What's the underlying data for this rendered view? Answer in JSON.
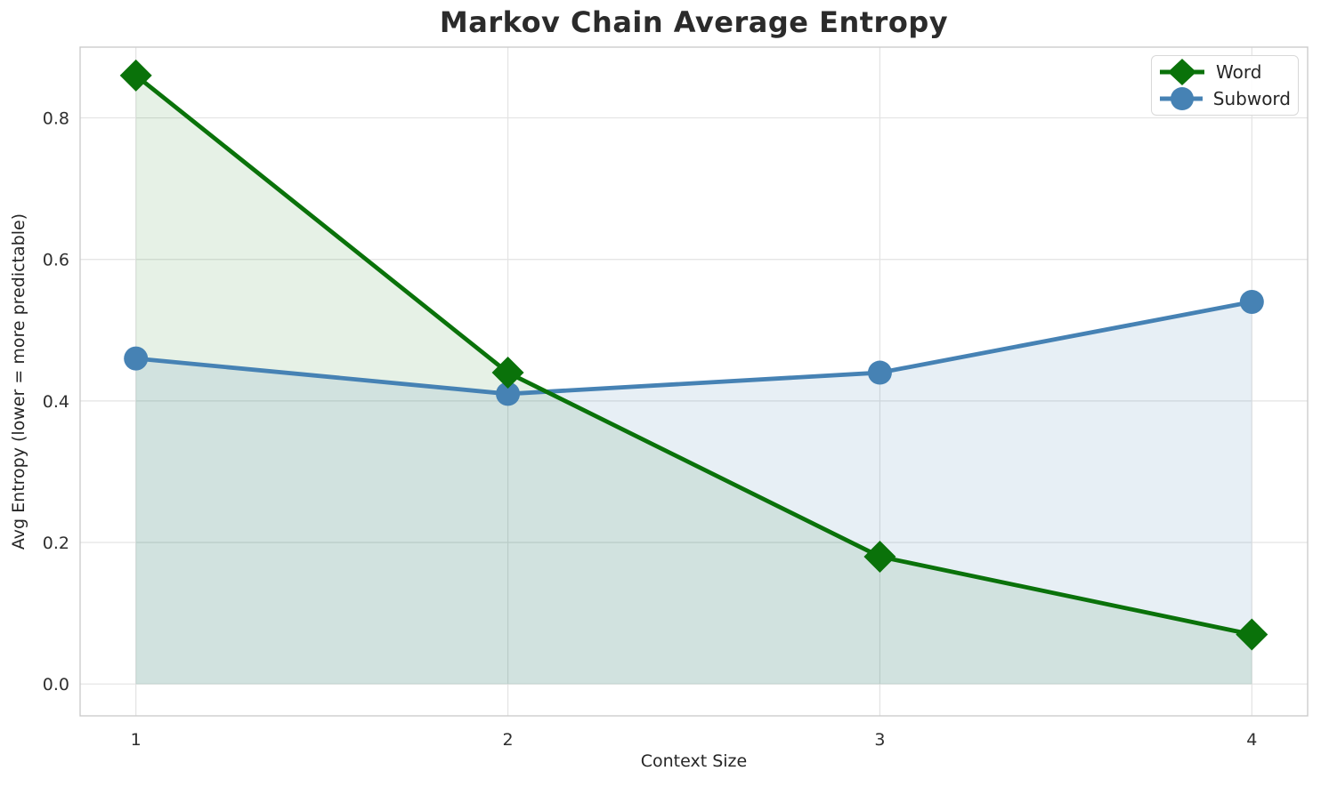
{
  "chart_data": {
    "type": "line",
    "title": "Markov Chain Average Entropy",
    "xlabel": "Context Size",
    "ylabel": "Avg Entropy (lower = more predictable)",
    "x": [
      1,
      2,
      3,
      4
    ],
    "series": [
      {
        "name": "Word",
        "values": [
          0.86,
          0.44,
          0.18,
          0.07
        ],
        "color": "#0a720a",
        "marker": "diamond",
        "fill_opacity": 0.1
      },
      {
        "name": "Subword",
        "values": [
          0.46,
          0.41,
          0.44,
          0.54
        ],
        "color": "#4682b4",
        "marker": "circle",
        "fill_opacity": 0.13
      }
    ],
    "xticks": [
      "1",
      "2",
      "3",
      "4"
    ],
    "yticks": [
      "0.0",
      "0.2",
      "0.4",
      "0.6",
      "0.8"
    ],
    "xlim": [
      0.85,
      4.15
    ],
    "ylim": [
      -0.045,
      0.9
    ],
    "grid": true,
    "area_fill_to": 0,
    "legend_position": "upper right"
  },
  "style": {
    "grid_color": "#e3e3e3",
    "spine_color": "#cccccc",
    "line_width": 4.8,
    "diamond_half": 18,
    "circle_radius": 13.5
  }
}
